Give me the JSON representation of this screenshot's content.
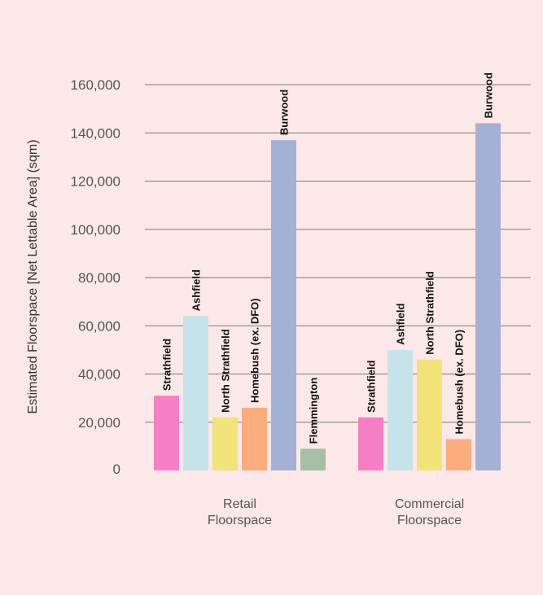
{
  "chart_data": {
    "type": "bar",
    "ylabel": "Estimated Floorspace [Net Lettable Area] (sqm)",
    "ylim": [
      0,
      160000
    ],
    "yticks": [
      0,
      20000,
      40000,
      60000,
      80000,
      100000,
      120000,
      140000,
      160000
    ],
    "ytick_labels": [
      "0",
      "20,000",
      "40,000",
      "60,000",
      "80,000",
      "100,000",
      "120,000",
      "140,000",
      "160,000"
    ],
    "grid": true,
    "groups": [
      {
        "label_lines": [
          "Retail",
          "Floorspace"
        ],
        "bars": [
          {
            "name": "Strathfield",
            "value": 31000,
            "color": "#f57fc4"
          },
          {
            "name": "Ashfield",
            "value": 64000,
            "color": "#c7e3ea"
          },
          {
            "name": "North Strathfield",
            "value": 22000,
            "color": "#f1e27a"
          },
          {
            "name": "Homebush (ex. DFO)",
            "value": 26000,
            "color": "#fbac7e"
          },
          {
            "name": "Burwood",
            "value": 137000,
            "color": "#a5b1d4"
          },
          {
            "name": "Flemmington",
            "value": 9000,
            "color": "#a5bfa4"
          }
        ]
      },
      {
        "label_lines": [
          "Commercial",
          "Floorspace"
        ],
        "bars": [
          {
            "name": "Strathfield",
            "value": 22000,
            "color": "#f57fc4"
          },
          {
            "name": "Ashfield",
            "value": 50000,
            "color": "#c7e3ea"
          },
          {
            "name": "North Strathfield",
            "value": 46000,
            "color": "#f1e27a"
          },
          {
            "name": "Homebush (ex. DFO)",
            "value": 13000,
            "color": "#fbac7e"
          },
          {
            "name": "Burwood",
            "value": 144000,
            "color": "#a5b1d4"
          }
        ]
      }
    ]
  }
}
